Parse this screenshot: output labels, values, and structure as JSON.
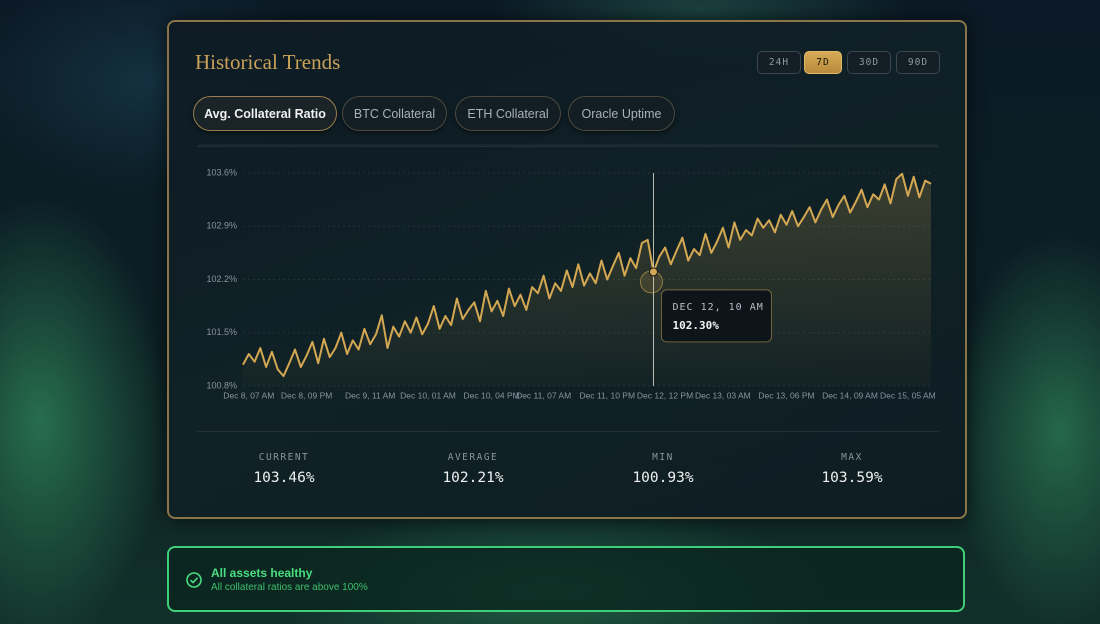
{
  "header": {
    "title": "Historical Trends",
    "ranges": [
      {
        "label": "24H",
        "active": false
      },
      {
        "label": "7D",
        "active": true
      },
      {
        "label": "30D",
        "active": false
      },
      {
        "label": "90D",
        "active": false
      }
    ]
  },
  "tabs": [
    {
      "label": "Avg. Collateral Ratio",
      "active": true
    },
    {
      "label": "BTC Collateral",
      "active": false
    },
    {
      "label": "ETH Collateral",
      "active": false
    },
    {
      "label": "Oracle Uptime",
      "active": false
    }
  ],
  "chart_data": {
    "type": "line",
    "color": "#d4a853",
    "grid": true,
    "ylim": [
      100.8,
      103.6
    ],
    "yticks": [
      {
        "value": 100.8,
        "label": "100.8%"
      },
      {
        "value": 101.5,
        "label": "101.5%"
      },
      {
        "value": 102.2,
        "label": "102.2%"
      },
      {
        "value": 102.9,
        "label": "102.9%"
      },
      {
        "value": 103.6,
        "label": "103.6%"
      }
    ],
    "categories": [
      null,
      "Dec 8, 07 AM",
      null,
      null,
      null,
      null,
      null,
      null,
      null,
      null,
      null,
      "Dec 8, 09 PM",
      null,
      null,
      null,
      null,
      null,
      null,
      null,
      null,
      null,
      null,
      "Dec 9, 11 AM",
      null,
      null,
      null,
      null,
      null,
      null,
      null,
      null,
      null,
      "Dec 10, 01 AM",
      null,
      null,
      null,
      null,
      null,
      null,
      null,
      null,
      null,
      null,
      "Dec 10, 04 PM",
      null,
      null,
      null,
      null,
      null,
      null,
      null,
      null,
      "Dec 11, 07 AM",
      null,
      null,
      null,
      null,
      null,
      null,
      null,
      null,
      null,
      null,
      "Dec 11, 10 PM",
      null,
      null,
      null,
      null,
      null,
      null,
      null,
      null,
      null,
      "Dec 12, 12 PM",
      null,
      null,
      null,
      null,
      null,
      null,
      null,
      null,
      null,
      "Dec 13, 03 AM",
      null,
      null,
      null,
      null,
      null,
      null,
      null,
      null,
      null,
      null,
      "Dec 13, 06 PM",
      null,
      null,
      null,
      null,
      null,
      null,
      null,
      null,
      null,
      null,
      "Dec 14, 09 AM",
      null,
      null,
      null,
      null,
      null,
      null,
      null,
      null,
      null,
      "Dec 15, 05 AM",
      null,
      null,
      null,
      null
    ],
    "values": [
      101.08,
      101.22,
      101.12,
      101.3,
      101.05,
      101.25,
      101.02,
      100.93,
      101.1,
      101.28,
      101.05,
      101.2,
      101.38,
      101.1,
      101.42,
      101.18,
      101.3,
      101.5,
      101.22,
      101.4,
      101.28,
      101.55,
      101.35,
      101.48,
      101.73,
      101.3,
      101.58,
      101.45,
      101.65,
      101.5,
      101.7,
      101.48,
      101.62,
      101.85,
      101.55,
      101.72,
      101.6,
      101.95,
      101.68,
      101.8,
      101.9,
      101.65,
      102.05,
      101.78,
      101.92,
      101.72,
      102.08,
      101.85,
      102.0,
      101.8,
      102.1,
      102.02,
      102.25,
      101.95,
      102.15,
      102.05,
      102.32,
      102.1,
      102.4,
      102.12,
      102.28,
      102.15,
      102.45,
      102.2,
      102.38,
      102.55,
      102.25,
      102.48,
      102.35,
      102.68,
      102.72,
      102.3,
      102.5,
      102.62,
      102.4,
      102.58,
      102.75,
      102.45,
      102.6,
      102.52,
      102.8,
      102.55,
      102.7,
      102.88,
      102.62,
      102.95,
      102.72,
      102.85,
      102.78,
      103.0,
      102.88,
      102.98,
      102.82,
      103.05,
      102.92,
      103.1,
      102.9,
      103.02,
      103.15,
      102.95,
      103.12,
      103.25,
      103.02,
      103.18,
      103.3,
      103.08,
      103.22,
      103.38,
      103.15,
      103.32,
      103.25,
      103.45,
      103.2,
      103.52,
      103.59,
      103.3,
      103.55,
      103.28,
      103.5,
      103.46
    ],
    "tooltip": {
      "label": "DEC 12, 10 AM",
      "value": 102.3,
      "value_label": "102.30%"
    }
  },
  "stats": [
    {
      "label": "CURRENT",
      "value": "103.46%"
    },
    {
      "label": "AVERAGE",
      "value": "102.21%"
    },
    {
      "label": "MIN",
      "value": "100.93%"
    },
    {
      "label": "MAX",
      "value": "103.59%"
    }
  ],
  "status": {
    "title": "All assets healthy",
    "message": "All collateral ratios are above 100%"
  }
}
